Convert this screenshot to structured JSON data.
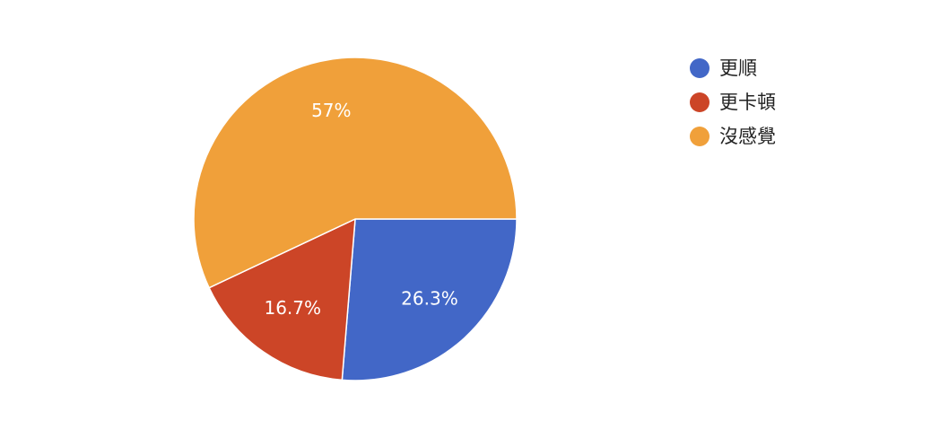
{
  "chart_data": {
    "type": "pie",
    "categories": [
      "更順",
      "更卡頓",
      "沒感覺"
    ],
    "values": [
      26.3,
      16.7,
      57
    ],
    "value_labels": [
      "26.3%",
      "16.7%",
      "57%"
    ],
    "colors": [
      "#4267c7",
      "#cc4527",
      "#f0a03a"
    ],
    "legend": "right"
  }
}
